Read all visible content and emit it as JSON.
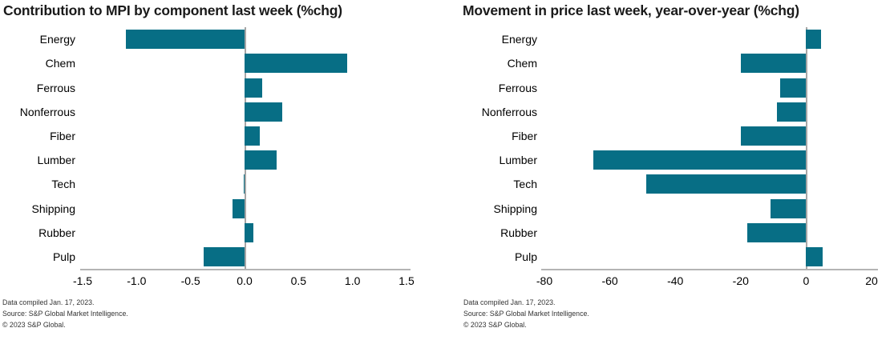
{
  "chart_data": [
    {
      "type": "bar",
      "orientation": "horizontal",
      "title": "Contribution to MPI by component last week (%chg)",
      "categories": [
        "Energy",
        "Chem",
        "Ferrous",
        "Nonferrous",
        "Fiber",
        "Lumber",
        "Tech",
        "Shipping",
        "Rubber",
        "Pulp"
      ],
      "values": [
        -1.1,
        0.95,
        0.16,
        0.35,
        0.14,
        0.3,
        -0.01,
        -0.11,
        0.08,
        -0.38
      ],
      "xlim": [
        -1.5,
        1.5
      ],
      "tick_values": [
        -1.5,
        -1.0,
        -0.5,
        0.0,
        0.5,
        1.0,
        1.5
      ],
      "tick_labels": [
        "-1.5",
        "-1.0",
        "-0.5",
        "0.0",
        "0.5",
        "1.0",
        "1.5"
      ],
      "xlabel": "",
      "ylabel": "",
      "grid": false,
      "legend": "none",
      "bar_color": "#076e85",
      "footer": [
        "Data compiled Jan. 17, 2023.",
        "Source: S&P Global Market Intelligence.",
        "© 2023 S&P Global."
      ]
    },
    {
      "type": "bar",
      "orientation": "horizontal",
      "title": "Movement in price last week, year-over-year (%chg)",
      "categories": [
        "Energy",
        "Chem",
        "Ferrous",
        "Nonferrous",
        "Fiber",
        "Lumber",
        "Tech",
        "Shipping",
        "Rubber",
        "Pulp"
      ],
      "values": [
        4.5,
        -20,
        -8,
        -9,
        -20,
        -65,
        -49,
        -11,
        -18,
        5
      ],
      "xlim": [
        -80,
        20
      ],
      "tick_values": [
        -80,
        -60,
        -40,
        -20,
        0,
        20
      ],
      "tick_labels": [
        "-80",
        "-60",
        "-40",
        "-20",
        "0",
        "20"
      ],
      "xlabel": "",
      "ylabel": "",
      "grid": false,
      "legend": "none",
      "bar_color": "#076e85",
      "footer": [
        "Data compiled Jan. 17, 2023.",
        "Source: S&P Global Market Intelligence.",
        "© 2023 S&P Global."
      ]
    }
  ]
}
